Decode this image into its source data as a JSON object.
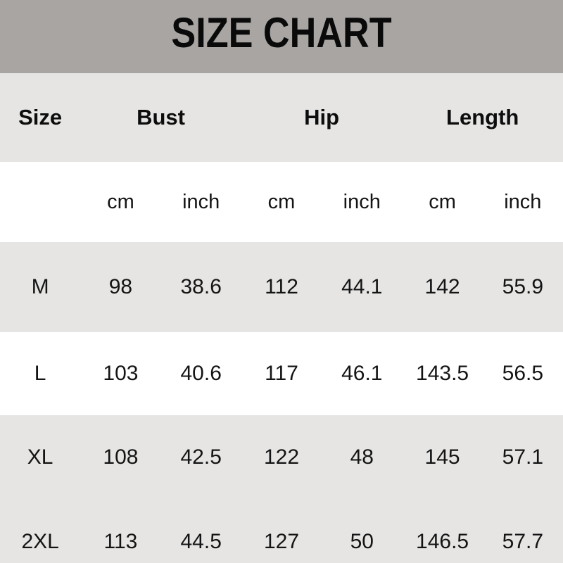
{
  "title": "SIZE CHART",
  "colors": {
    "title_band_bg": "#a8a5a3",
    "row_gray_bg": "#e6e5e4",
    "row_white_bg": "#ffffff",
    "text": "#111111"
  },
  "table": {
    "size_header": "Size",
    "groups": [
      "Bust",
      "Hip",
      "Length"
    ],
    "units": [
      "cm",
      "inch",
      "cm",
      "inch",
      "cm",
      "inch"
    ],
    "rows": [
      {
        "size": "M",
        "values": [
          "98",
          "38.6",
          "112",
          "44.1",
          "142",
          "55.9"
        ]
      },
      {
        "size": "L",
        "values": [
          "103",
          "40.6",
          "117",
          "46.1",
          "143.5",
          "56.5"
        ]
      },
      {
        "size": "XL",
        "values": [
          "108",
          "42.5",
          "122",
          "48",
          "145",
          "57.1"
        ]
      },
      {
        "size": "2XL",
        "values": [
          "113",
          "44.5",
          "127",
          "50",
          "146.5",
          "57.7"
        ]
      }
    ]
  },
  "chart_data": {
    "type": "table",
    "title": "SIZE CHART",
    "columns": [
      "Size",
      "Bust cm",
      "Bust inch",
      "Hip cm",
      "Hip inch",
      "Length cm",
      "Length inch"
    ],
    "rows": [
      [
        "M",
        98,
        38.6,
        112,
        44.1,
        142,
        55.9
      ],
      [
        "L",
        103,
        40.6,
        117,
        46.1,
        143.5,
        56.5
      ],
      [
        "XL",
        108,
        42.5,
        122,
        48,
        145,
        57.1
      ],
      [
        "2XL",
        113,
        44.5,
        127,
        50,
        146.5,
        57.7
      ]
    ]
  }
}
